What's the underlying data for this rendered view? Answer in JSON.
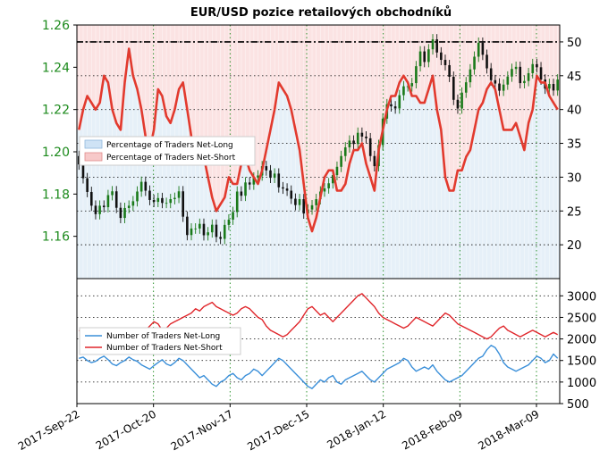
{
  "chart_data": [
    {
      "type": "line",
      "panel": "top",
      "title": "EUR/USD pozice retailových obchodníků",
      "y_left_ticks": [
        "1.16",
        "1.18",
        "1.20",
        "1.22",
        "1.24",
        "1.26"
      ],
      "y_right_ticks": [
        "20",
        "25",
        "30",
        "35",
        "40",
        "45",
        "50"
      ],
      "ylim_left": [
        1.14,
        1.26
      ],
      "ylim_right": [
        15,
        52.5
      ],
      "reference_line_right": 50,
      "grid": true,
      "legend_position": "upper-left",
      "legend": [
        "Percentage of Traders Net-Long",
        "Percentage of Traders Net-Short"
      ],
      "price_close": [
        1.194,
        1.1875,
        1.181,
        1.1745,
        1.1705,
        1.1745,
        1.1738,
        1.1795,
        1.1813,
        1.1735,
        1.1687,
        1.1734,
        1.1745,
        1.1766,
        1.1812,
        1.1858,
        1.1816,
        1.1772,
        1.1763,
        1.1781,
        1.1758,
        1.1758,
        1.1776,
        1.1782,
        1.1813,
        1.1693,
        1.1606,
        1.1637,
        1.1637,
        1.1659,
        1.1605,
        1.1619,
        1.1655,
        1.1597,
        1.1588,
        1.1654,
        1.1679,
        1.1715,
        1.1812,
        1.1792,
        1.1855,
        1.1845,
        1.1878,
        1.1888,
        1.1932,
        1.1912,
        1.1877,
        1.1897,
        1.1832,
        1.1826,
        1.1816,
        1.1778,
        1.1748,
        1.1776,
        1.1708,
        1.1727,
        1.1747,
        1.1776,
        1.1812,
        1.1827,
        1.1851,
        1.189,
        1.1929,
        1.198,
        1.2021,
        1.2053,
        1.2037,
        1.209,
        1.2072,
        1.2064,
        1.198,
        1.1932,
        1.2032,
        1.2157,
        1.2225,
        1.2215,
        1.2205,
        1.2268,
        1.231,
        1.231,
        1.2325,
        1.2405,
        1.2475,
        1.2425,
        1.2485,
        1.2532,
        1.247,
        1.2435,
        1.241,
        1.2355,
        1.2246,
        1.2205,
        1.228,
        1.2329,
        1.239,
        1.245,
        1.2516,
        1.2459,
        1.2395,
        1.2339,
        1.2323,
        1.2289,
        1.2318,
        1.2356,
        1.2392,
        1.2402,
        1.2325,
        1.2335,
        1.2372,
        1.2415,
        1.24,
        1.2342,
        1.2299,
        1.2321,
        1.229,
        1.2342
      ],
      "percent_net_long": [
        37,
        40,
        42,
        41,
        40,
        41,
        45,
        44,
        40,
        38,
        37,
        44,
        49,
        45,
        43,
        40,
        36,
        34,
        37,
        43,
        42,
        39,
        38,
        40,
        43,
        44,
        40,
        36,
        34,
        32,
        33,
        30,
        27,
        25,
        26,
        27,
        30,
        29,
        29,
        32,
        33,
        31,
        30,
        29,
        31,
        34,
        37,
        40,
        44,
        43,
        42,
        40,
        37,
        34,
        29,
        24,
        22,
        24,
        27,
        30,
        31,
        31,
        28,
        28,
        29,
        32,
        34,
        34,
        35,
        32,
        30,
        28,
        34,
        37,
        40,
        42,
        42,
        44,
        45,
        44,
        42,
        42,
        41,
        41,
        43,
        45,
        40,
        37,
        30,
        28,
        28,
        31,
        31,
        33,
        34,
        37,
        40,
        41,
        43,
        44,
        43,
        40,
        37,
        37,
        37,
        38,
        36,
        34,
        38,
        40,
        45,
        44,
        44,
        42,
        41,
        40
      ],
      "percent_net_short": [
        63,
        60,
        58,
        59,
        60,
        59,
        55,
        56,
        60,
        62,
        63,
        56,
        51,
        55,
        57,
        60,
        64,
        66,
        63,
        57,
        58,
        61,
        62,
        60,
        57,
        56,
        60,
        64,
        66,
        68,
        67,
        70,
        73,
        75,
        74,
        73,
        70,
        71,
        71,
        68,
        67,
        69,
        70,
        71,
        69,
        66,
        63,
        60,
        56,
        57,
        58,
        60,
        63,
        66,
        71,
        76,
        78,
        76,
        73,
        70,
        69,
        69,
        72,
        72,
        71,
        68,
        66,
        66,
        65,
        68,
        70,
        72,
        66,
        63,
        60,
        58,
        58,
        56,
        55,
        56,
        58,
        58,
        59,
        59,
        57,
        55,
        60,
        63,
        70,
        72,
        72,
        69,
        69,
        67,
        66,
        63,
        60,
        59,
        57,
        56,
        57,
        60,
        63,
        63,
        63,
        62,
        64,
        66,
        62,
        60,
        55,
        56,
        56,
        58,
        59,
        60
      ]
    },
    {
      "type": "line",
      "panel": "bottom",
      "y_right_ticks": [
        "500",
        "1000",
        "1500",
        "2000",
        "2500",
        "3000"
      ],
      "ylim": [
        500,
        3400
      ],
      "grid": true,
      "legend_position": "upper-left",
      "legend": [
        "Number of Traders Net-Long",
        "Number of Traders Net-Short"
      ],
      "x_ticks": [
        "2017-Sep-22",
        "2017-Oct-20",
        "2017-Nov-17",
        "2017-Dec-15",
        "2018-Jan-12",
        "2018-Feb-09",
        "2018-Mar-09"
      ],
      "series": [
        {
          "name": "Number of Traders Net-Long",
          "color": "#3a8fd9",
          "values": [
            1550,
            1580,
            1500,
            1450,
            1480,
            1550,
            1600,
            1520,
            1420,
            1380,
            1450,
            1500,
            1580,
            1520,
            1480,
            1400,
            1350,
            1300,
            1380,
            1450,
            1520,
            1420,
            1380,
            1450,
            1550,
            1500,
            1400,
            1300,
            1200,
            1100,
            1150,
            1050,
            950,
            900,
            1000,
            1050,
            1150,
            1200,
            1100,
            1050,
            1150,
            1200,
            1300,
            1250,
            1150,
            1250,
            1350,
            1450,
            1550,
            1500,
            1400,
            1300,
            1200,
            1100,
            1000,
            900,
            850,
            950,
            1050,
            1000,
            1100,
            1150,
            1000,
            950,
            1050,
            1100,
            1150,
            1200,
            1250,
            1150,
            1050,
            1000,
            1100,
            1200,
            1300,
            1350,
            1400,
            1450,
            1550,
            1500,
            1350,
            1250,
            1300,
            1350,
            1300,
            1400,
            1250,
            1150,
            1050,
            1000,
            1050,
            1100,
            1150,
            1250,
            1350,
            1450,
            1550,
            1600,
            1750,
            1850,
            1800,
            1650,
            1450,
            1350,
            1300,
            1250,
            1300,
            1350,
            1400,
            1500,
            1600,
            1550,
            1450,
            1500,
            1650,
            1550
          ]
        },
        {
          "name": "Number of Traders Net-Short",
          "color": "#e0262b",
          "values": [
            2200,
            2150,
            2100,
            2050,
            2120,
            2200,
            2250,
            2150,
            2080,
            2020,
            2100,
            2000,
            1950,
            2050,
            2150,
            2250,
            2200,
            2300,
            2400,
            2350,
            2200,
            2250,
            2350,
            2400,
            2450,
            2500,
            2550,
            2600,
            2700,
            2650,
            2750,
            2800,
            2850,
            2750,
            2700,
            2650,
            2600,
            2550,
            2600,
            2700,
            2750,
            2700,
            2600,
            2500,
            2450,
            2300,
            2200,
            2150,
            2100,
            2050,
            2100,
            2200,
            2300,
            2400,
            2550,
            2700,
            2750,
            2650,
            2550,
            2600,
            2500,
            2400,
            2500,
            2600,
            2700,
            2800,
            2900,
            3000,
            3050,
            2950,
            2850,
            2750,
            2600,
            2500,
            2450,
            2400,
            2350,
            2300,
            2250,
            2300,
            2400,
            2500,
            2450,
            2400,
            2350,
            2300,
            2400,
            2500,
            2600,
            2550,
            2450,
            2350,
            2300,
            2250,
            2200,
            2150,
            2100,
            2050,
            2000,
            2050,
            2150,
            2250,
            2300,
            2200,
            2150,
            2100,
            2050,
            2100,
            2150,
            2200,
            2150,
            2100,
            2050,
            2100,
            2150,
            2100
          ]
        }
      ]
    }
  ]
}
